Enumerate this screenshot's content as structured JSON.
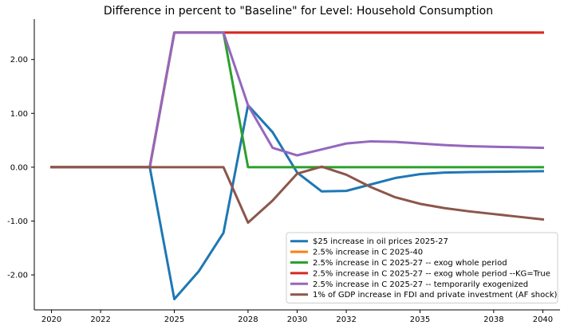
{
  "chart_data": {
    "type": "line",
    "title": "Difference in percent to \"Baseline\" for Level: Household Consumption",
    "xlabel": "",
    "ylabel": "",
    "xlim": [
      2019.3,
      2040.7
    ],
    "ylim": [
      -2.65,
      2.75
    ],
    "x_ticks": [
      2020,
      2022,
      2025,
      2028,
      2030,
      2032,
      2035,
      2038,
      2040
    ],
    "x_tick_labels": [
      "2020",
      "2022",
      "2025",
      "2028",
      "2030",
      "2032",
      "2035",
      "2038",
      "2040"
    ],
    "y_ticks": [
      -2,
      -1,
      0,
      1,
      2
    ],
    "y_tick_labels": [
      "-2.00",
      "-1.00",
      "0.00",
      "1.00",
      "2.00"
    ],
    "grid": false,
    "legend_position": "lower right",
    "x": [
      2020,
      2021,
      2022,
      2023,
      2024,
      2025,
      2026,
      2027,
      2028,
      2029,
      2030,
      2031,
      2032,
      2033,
      2034,
      2035,
      2036,
      2037,
      2038,
      2039,
      2040
    ],
    "series": [
      {
        "name": "$25 increase in oil prices 2025-27",
        "color": "#1f77b4",
        "values": [
          0,
          0,
          0,
          0,
          0,
          -2.45,
          -1.93,
          -1.22,
          1.15,
          0.65,
          -0.1,
          -0.45,
          -0.44,
          -0.32,
          -0.2,
          -0.13,
          -0.1,
          -0.09,
          -0.085,
          -0.08,
          -0.075
        ]
      },
      {
        "name": "2.5% increase in C 2025-40",
        "color": "#ff7f0e",
        "values": [
          0,
          0,
          0,
          0,
          0,
          2.5,
          2.5,
          2.5,
          2.5,
          2.5,
          2.5,
          2.5,
          2.5,
          2.5,
          2.5,
          2.5,
          2.5,
          2.5,
          2.5,
          2.5,
          2.5
        ]
      },
      {
        "name": "2.5% increase in C 2025-27 -- exog whole period",
        "color": "#2ca02c",
        "values": [
          0,
          0,
          0,
          0,
          0,
          2.5,
          2.5,
          2.5,
          0,
          0,
          0,
          0,
          0,
          0,
          0,
          0,
          0,
          0,
          0,
          0,
          0
        ]
      },
      {
        "name": "2.5% increase in C 2025-27 -- exog whole period --KG=True",
        "color": "#d62728",
        "values": [
          0,
          0,
          0,
          0,
          0,
          2.5,
          2.5,
          2.5,
          2.5,
          2.5,
          2.5,
          2.5,
          2.5,
          2.5,
          2.5,
          2.5,
          2.5,
          2.5,
          2.5,
          2.5,
          2.5
        ]
      },
      {
        "name": "2.5% increase in C 2025-27 -- temporarily exogenized",
        "color": "#9467bd",
        "values": [
          0,
          0,
          0,
          0,
          0,
          2.5,
          2.5,
          2.5,
          1.15,
          0.36,
          0.22,
          0.33,
          0.44,
          0.48,
          0.47,
          0.44,
          0.41,
          0.39,
          0.38,
          0.37,
          0.36
        ]
      },
      {
        "name": "1% of GDP increase in FDI and private investment (AF shock)",
        "color": "#8c564b",
        "values": [
          0,
          0,
          0,
          0,
          0,
          0,
          0,
          0,
          -1.03,
          -0.62,
          -0.12,
          0.01,
          -0.14,
          -0.37,
          -0.56,
          -0.68,
          -0.76,
          -0.82,
          -0.87,
          -0.92,
          -0.97
        ]
      }
    ]
  }
}
